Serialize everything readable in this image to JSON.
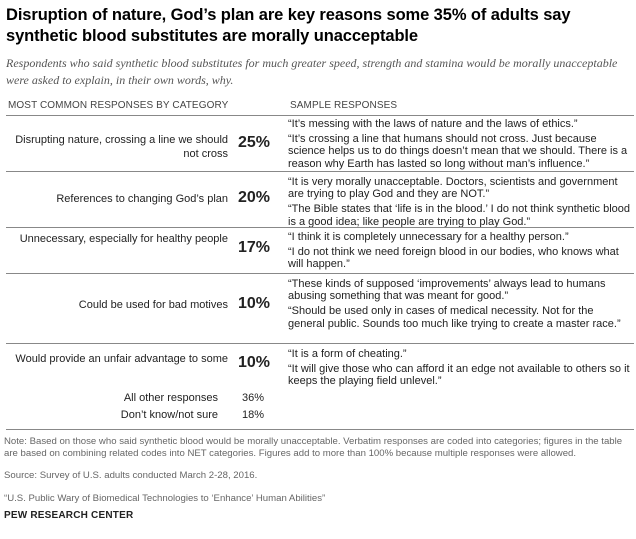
{
  "title": "Disruption of nature, God’s plan are key reasons some 35% of adults say synthetic blood substitutes are morally unacceptable",
  "subtitle": "Respondents who said synthetic blood substitutes for much greater speed, strength and stamina would be morally unacceptable were asked to explain, in their own words, why.",
  "headers": {
    "left": "MOST COMMON RESPONSES BY CATEGORY",
    "right": "SAMPLE RESPONSES"
  },
  "rows": [
    {
      "category": "Disrupting nature, crossing a line we should not cross",
      "percent": "25%",
      "responses": [
        "“It’s messing with the laws of nature and the laws of ethics.”",
        "“It’s crossing a line that humans should not cross. Just because science helps us to do things doesn’t mean that we should. There is a reason why Earth has lasted so long without man’s influence.”"
      ]
    },
    {
      "category": "References to changing God’s plan",
      "percent": "20%",
      "responses": [
        "“It is very morally unacceptable. Doctors, scientists and government are trying to play God and they are NOT.”",
        "“The Bible states that ‘life is in the blood.’ I do not think synthetic blood is a good idea; like people are trying to play God.”"
      ]
    },
    {
      "category": "Unnecessary, especially for healthy people",
      "percent": "17%",
      "responses": [
        "“I think it is completely unnecessary for a healthy person.”",
        "“I do not think we need foreign blood in our bodies, who knows what will happen.”"
      ]
    },
    {
      "category": "Could be used for bad motives",
      "percent": "10%",
      "responses": [
        "“These kinds of supposed ‘improvements’ always lead to humans abusing something that was meant for good.”",
        "“Should be used only in cases of medical necessity. Not for the general public. Sounds too much like trying to create a master race.”"
      ]
    },
    {
      "category": "Would provide an unfair advantage to some",
      "percent": "10%",
      "responses": [
        "“It is a form of cheating.”",
        "“It will give those who can afford it an edge not available to others so it keeps the playing field unlevel.”"
      ]
    }
  ],
  "others": [
    {
      "label": "All other responses",
      "value": "36%"
    },
    {
      "label": "Don’t know/not sure",
      "value": "18%"
    }
  ],
  "note": "Note: Based on those who said synthetic blood would be morally unacceptable. Verbatim responses are coded into categories; figures in the table are based on combining related codes into NET categories. Figures add to more than 100% because multiple responses were allowed.",
  "source": "Source: Survey of U.S. adults conducted March 2-28, 2016.",
  "report": "“U.S. Public Wary of Biomedical Technologies to ‘Enhance’ Human Abilities”",
  "brand": "PEW RESEARCH CENTER"
}
